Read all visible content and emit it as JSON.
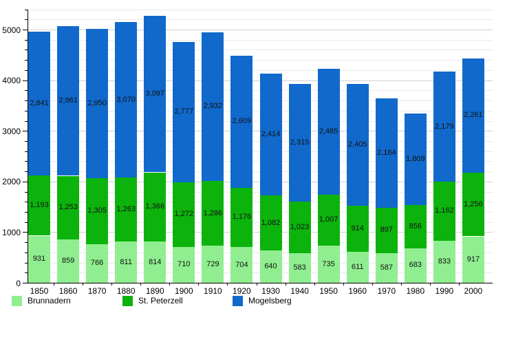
{
  "chart_data": {
    "type": "bar",
    "stacked": true,
    "title": "",
    "xlabel": "",
    "ylabel": "",
    "categories": [
      "1850",
      "1860",
      "1870",
      "1880",
      "1890",
      "1900",
      "1910",
      "1920",
      "1930",
      "1940",
      "1950",
      "1960",
      "1970",
      "1980",
      "1990",
      "2000"
    ],
    "series": [
      {
        "name": "Brunnadern",
        "color": "#90EE90",
        "values": [
          931,
          859,
          766,
          811,
          814,
          710,
          729,
          704,
          640,
          583,
          735,
          611,
          587,
          683,
          833,
          917
        ]
      },
      {
        "name": "St. Peterzell",
        "color": "#0CB30C",
        "values": [
          1193,
          1253,
          1305,
          1263,
          1366,
          1272,
          1286,
          1176,
          1082,
          1023,
          1007,
          914,
          897,
          856,
          1162,
          1256
        ]
      },
      {
        "name": "Mogelsberg",
        "color": "#1169CC",
        "values": [
          2841,
          2961,
          2950,
          3070,
          3097,
          2777,
          2932,
          2609,
          2414,
          2315,
          2485,
          2405,
          2164,
          1809,
          2179,
          2261
        ]
      }
    ],
    "ylim": [
      0,
      5400
    ],
    "y_major_ticks": [
      0,
      1000,
      2000,
      3000,
      4000,
      5000
    ],
    "y_tick_labels": [
      "0",
      "1000",
      "2000",
      "3000",
      "4000",
      "5000"
    ],
    "y_minor_step": 200,
    "grid": true,
    "value_labels": true,
    "legend_position": "bottom"
  }
}
